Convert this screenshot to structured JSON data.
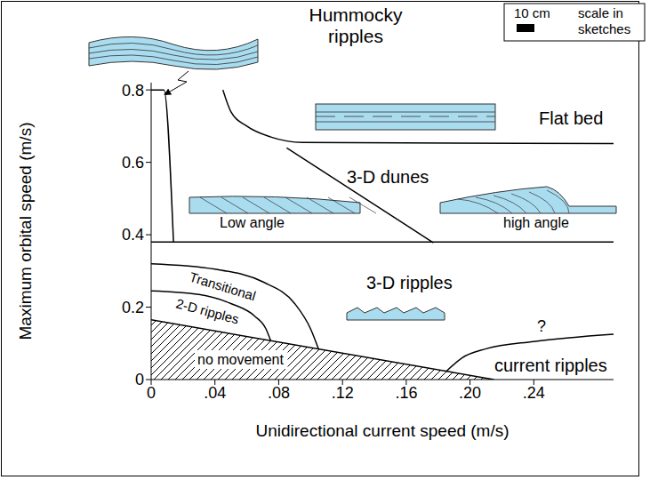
{
  "chart_data": {
    "type": "line",
    "x_label": "Unidirectional current speed (m/s)",
    "y_label": "Maximum orbital speed (m/s)",
    "xlim": [
      0,
      0.29
    ],
    "ylim": [
      0,
      0.82
    ],
    "xticks": [
      0,
      {
        "value": 0.04,
        "label": ".04"
      },
      {
        "value": 0.08,
        "label": ".08"
      },
      {
        "value": 0.12,
        "label": ".12"
      },
      {
        "value": 0.16,
        "label": ".16"
      },
      {
        "value": 0.2,
        "label": ".20"
      },
      {
        "value": 0.24,
        "label": ".24"
      }
    ],
    "yticks": [
      0,
      0.2,
      0.4,
      0.6,
      0.8
    ],
    "grid": false,
    "series": [
      {
        "type": "area",
        "color": "#000000",
        "x": [
          0,
          0.215
        ],
        "values": [
          0.165,
          0
        ]
      },
      {
        "type": "line",
        "color": "#000000",
        "x": [
          0,
          0.03,
          0.05,
          0.065,
          0.072,
          0.075
        ],
        "values": [
          0.245,
          0.235,
          0.21,
          0.175,
          0.14,
          0.107
        ]
      },
      {
        "type": "line",
        "color": "#000000",
        "x": [
          0,
          0.04,
          0.07,
          0.09,
          0.1,
          0.105
        ],
        "values": [
          0.32,
          0.305,
          0.27,
          0.21,
          0.14,
          0.084
        ]
      },
      {
        "type": "line",
        "color": "#000000",
        "x": [
          0,
          0.29
        ],
        "values": [
          0.38,
          0.38
        ]
      },
      {
        "type": "line",
        "color": "#000000",
        "x": [
          0,
          0.008,
          0.014
        ],
        "values": [
          0.8,
          0.8,
          0.38
        ]
      },
      {
        "type": "line",
        "color": "#000000",
        "x": [
          0.045,
          0.05,
          0.06,
          0.075,
          0.095,
          0.29
        ],
        "values": [
          0.8,
          0.74,
          0.7,
          0.67,
          0.655,
          0.652
        ]
      },
      {
        "type": "line",
        "color": "#000000",
        "x": [
          0.085,
          0.177
        ],
        "values": [
          0.64,
          0.378
        ]
      },
      {
        "type": "line",
        "color": "#000000",
        "x": [
          0.185,
          0.195,
          0.21,
          0.24,
          0.29
        ],
        "values": [
          0.022,
          0.06,
          0.085,
          0.105,
          0.125
        ]
      }
    ],
    "annotations": [
      "Hummocky ripples",
      "Flat bed",
      "3-D dunes",
      "Low angle",
      "high angle",
      "3-D ripples",
      "Transitional",
      "2-D ripples",
      "no movement",
      "current ripples",
      "?",
      "10 cm",
      "scale in sketches"
    ]
  }
}
